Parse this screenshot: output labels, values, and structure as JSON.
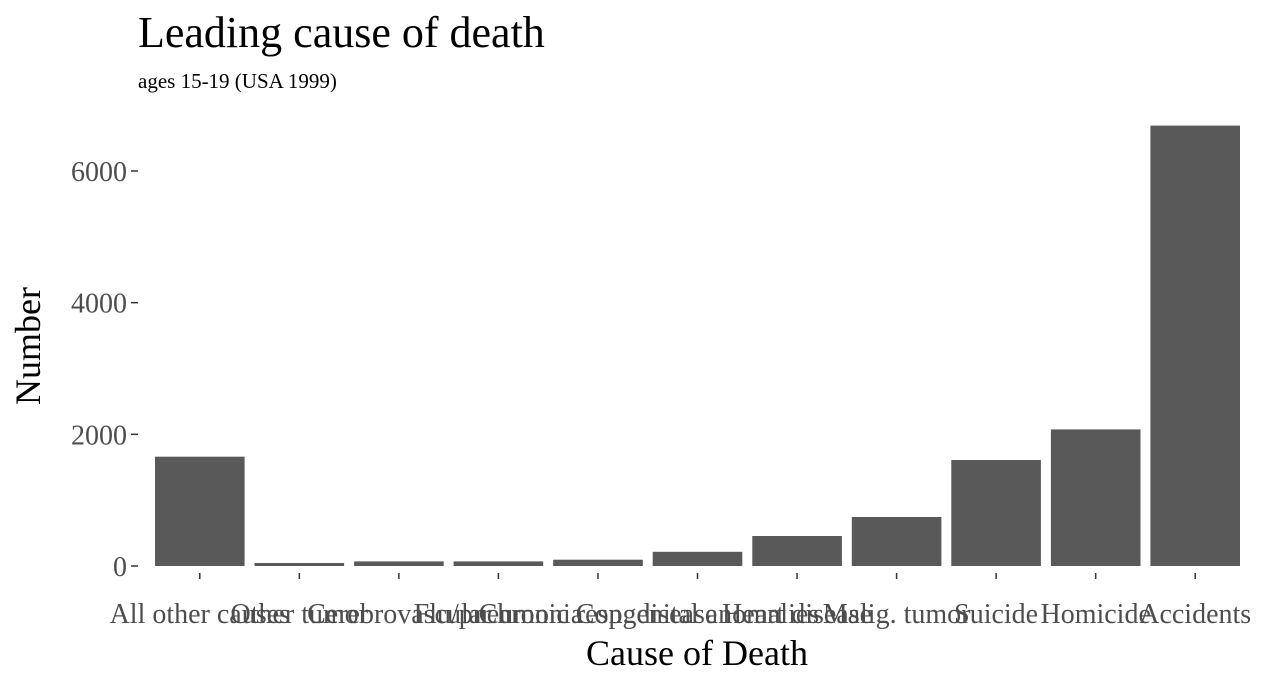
{
  "chart_data": {
    "type": "bar",
    "title": "Leading cause of death",
    "subtitle": "ages 15-19 (USA 1999)",
    "xlabel": "Cause of Death",
    "ylabel": "Number",
    "categories": [
      "All other causes",
      "Other tumor",
      "Cerebrovascular",
      "Flu/pneumonia",
      "Chronic resp. disease",
      "Congenital anomalies",
      "Heart disease",
      "Malig. tumor",
      "Suicide",
      "Homicide",
      "Accidents"
    ],
    "values": [
      1660,
      45,
      70,
      70,
      95,
      215,
      455,
      745,
      1610,
      2075,
      6690
    ],
    "ylim": [
      0,
      6700
    ],
    "yticks": [
      0,
      2000,
      4000,
      6000
    ],
    "ytick_labels": [
      "0",
      "2000",
      "4000",
      "6000"
    ],
    "bar_color": "#595959",
    "grid": false,
    "legend": "none"
  }
}
